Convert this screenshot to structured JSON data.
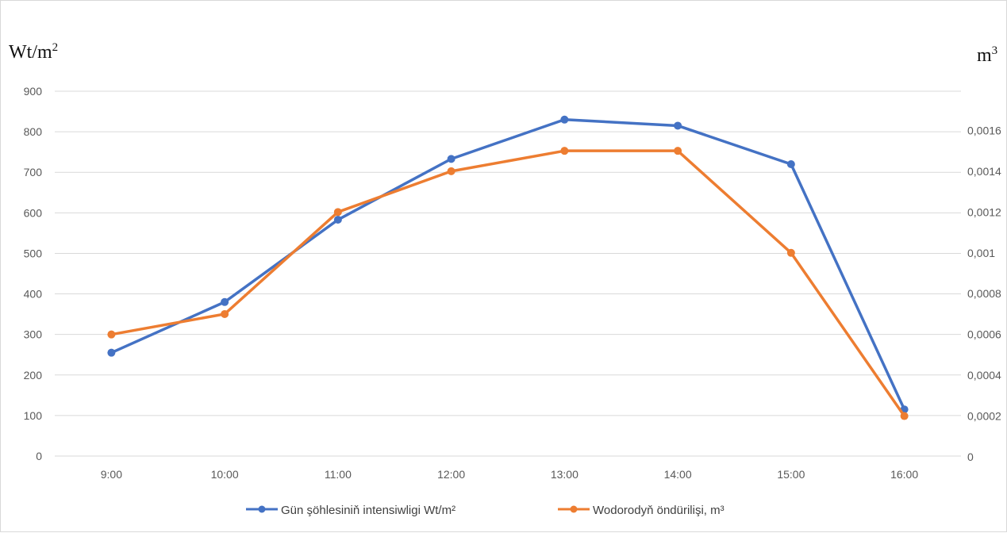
{
  "chart_data": {
    "type": "line",
    "categories": [
      "9:00",
      "10:00",
      "11:00",
      "12:00",
      "13:00",
      "14:00",
      "15:00",
      "16:00"
    ],
    "y_left": {
      "unit_base": "Wt/m",
      "unit_sup": "2",
      "ylim": [
        0,
        900
      ],
      "ticks": [
        "0",
        "100",
        "200",
        "300",
        "400",
        "500",
        "600",
        "700",
        "800",
        "900"
      ]
    },
    "y_right": {
      "unit_base": "m",
      "unit_sup": "3",
      "ylim": [
        0,
        0.0018
      ],
      "ticks": [
        "0",
        "0,0002",
        "0,0004",
        "0,0006",
        "0,0008",
        "0,001",
        "0,0012",
        "0,0014",
        "0,0016"
      ]
    },
    "series": [
      {
        "name": "Gün şöhlesiniň intensiwligi Wt/m²",
        "axis": "left",
        "color": "#4472c4",
        "values": [
          255,
          380,
          583,
          733,
          830,
          815,
          720,
          115
        ]
      },
      {
        "name": "Wodorodyň öndürilişi, m³",
        "axis": "right",
        "color": "#ed7d31",
        "values": [
          0.0006,
          0.0007,
          0.0012,
          0.0014,
          0.0015,
          0.0015,
          0.001,
          0.0002
        ]
      }
    ],
    "grid": true,
    "legend": "bottom-center"
  }
}
